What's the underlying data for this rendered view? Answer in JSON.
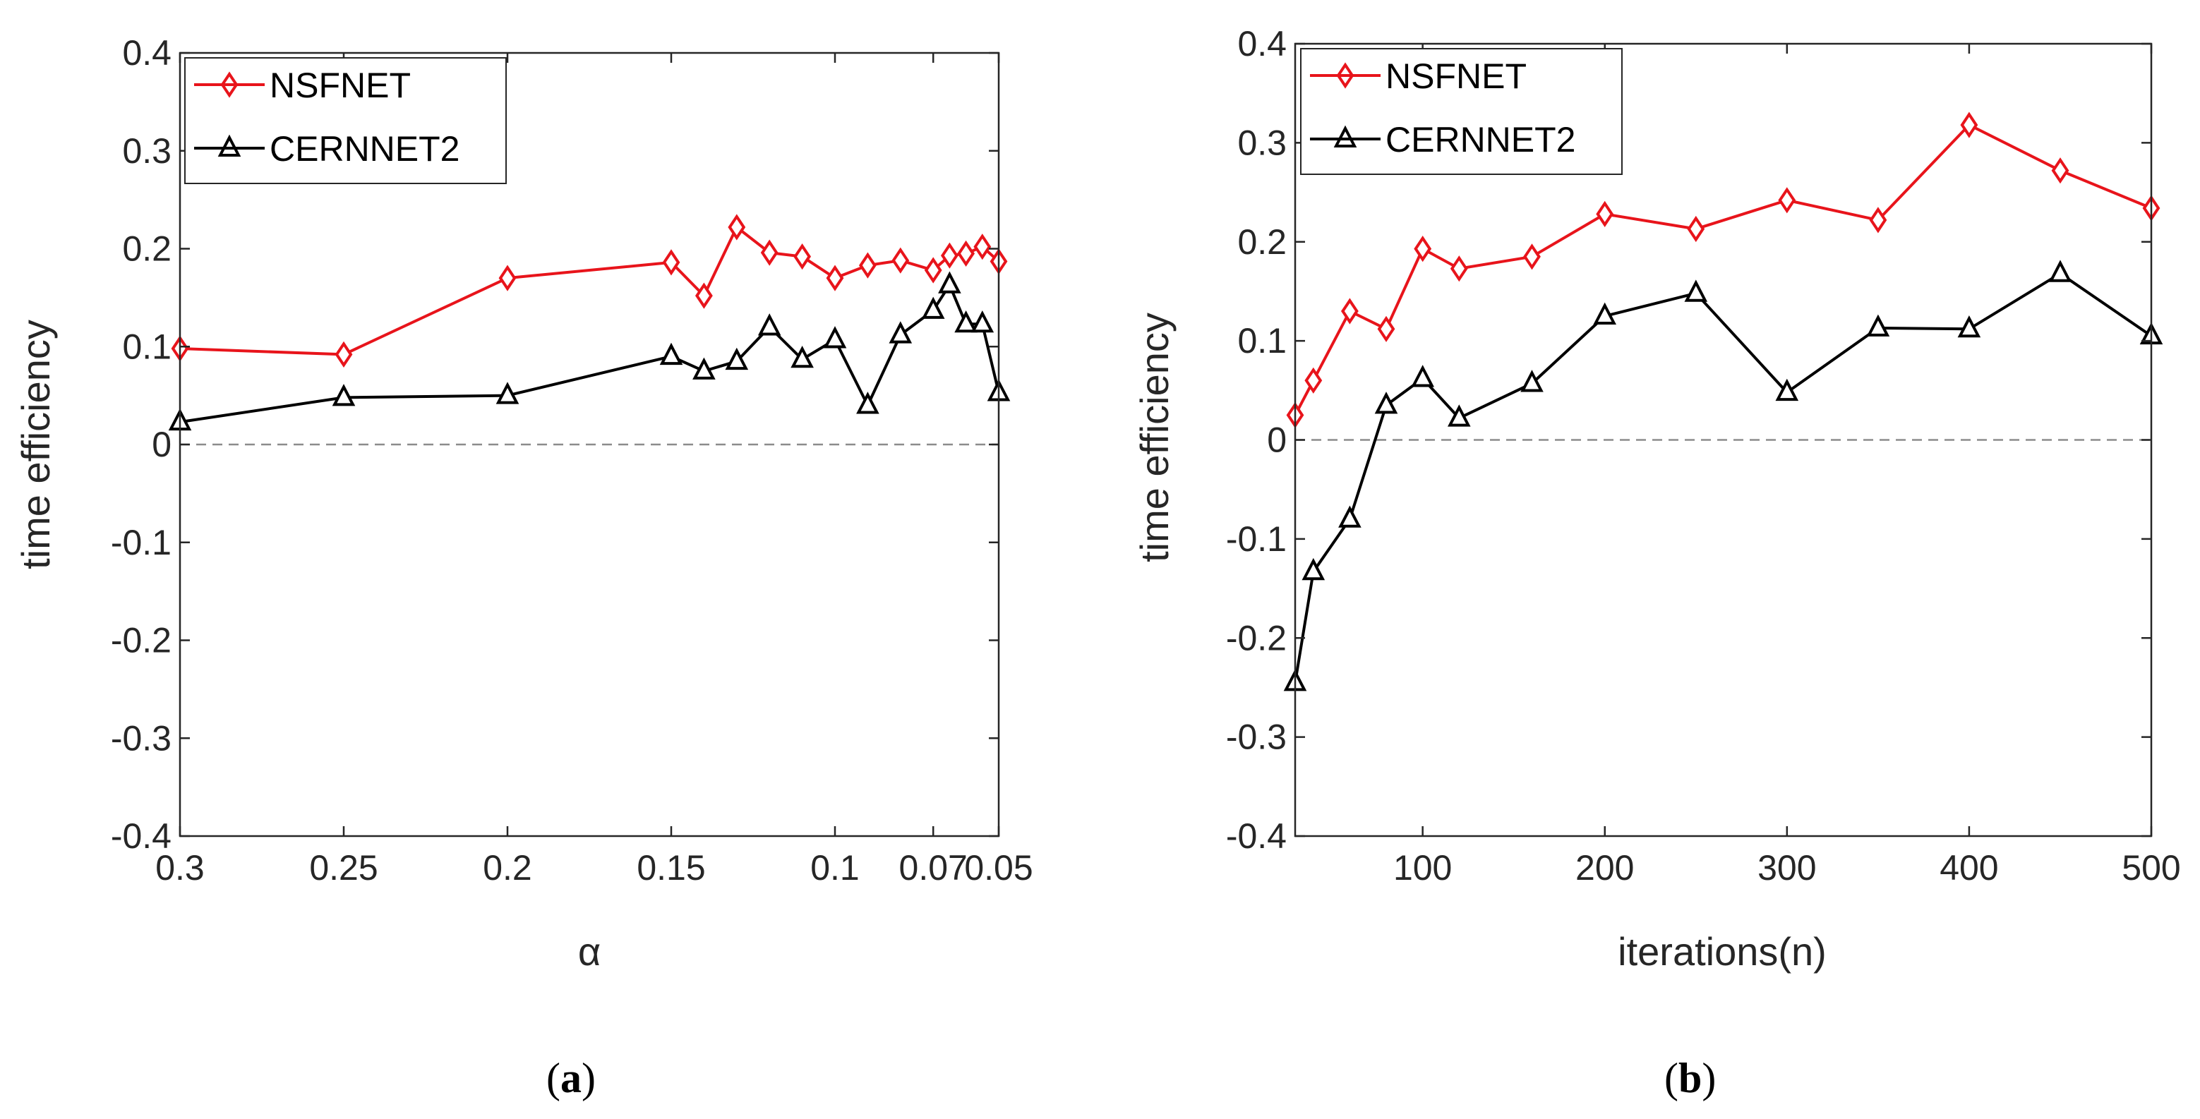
{
  "figure_captions": [
    {
      "open": "(",
      "letter": "a",
      "close": ")"
    },
    {
      "open": "(",
      "letter": "b",
      "close": ")"
    }
  ],
  "chart_data": [
    {
      "type": "line",
      "panel": "a",
      "xlabel": "α",
      "ylabel": "time efficiency",
      "x_reversed": true,
      "xlim": [
        0.05,
        0.3
      ],
      "ylim": [
        -0.4,
        0.4
      ],
      "xticks": [
        {
          "value": 0.3,
          "label": "0.3"
        },
        {
          "value": 0.25,
          "label": "0.25"
        },
        {
          "value": 0.2,
          "label": "0.2"
        },
        {
          "value": 0.15,
          "label": "0.15"
        },
        {
          "value": 0.1,
          "label": "0.1"
        },
        {
          "value": 0.07,
          "label": "0.07"
        },
        {
          "value": 0.05,
          "label": "0.05"
        }
      ],
      "yticks": [
        {
          "value": 0.4,
          "label": "0.4"
        },
        {
          "value": 0.3,
          "label": "0.3"
        },
        {
          "value": 0.2,
          "label": "0.2"
        },
        {
          "value": 0.1,
          "label": "0.1"
        },
        {
          "value": 0,
          "label": "0"
        },
        {
          "value": -0.1,
          "label": "-0.1"
        },
        {
          "value": -0.2,
          "label": "-0.2"
        },
        {
          "value": -0.3,
          "label": "-0.3"
        },
        {
          "value": -0.4,
          "label": "-0.4"
        }
      ],
      "reference_line": 0,
      "legend_position": "top-left",
      "series": [
        {
          "name": "NSFNET",
          "color": "#e8141b",
          "marker": "diamond",
          "x": [
            0.3,
            0.25,
            0.2,
            0.15,
            0.14,
            0.13,
            0.12,
            0.11,
            0.1,
            0.09,
            0.08,
            0.07,
            0.065,
            0.06,
            0.055,
            0.05
          ],
          "y": [
            0.098,
            0.092,
            0.17,
            0.186,
            0.152,
            0.222,
            0.196,
            0.192,
            0.17,
            0.183,
            0.188,
            0.178,
            0.193,
            0.195,
            0.202,
            0.187
          ]
        },
        {
          "name": "CERNNET2",
          "color": "#000000",
          "marker": "triangle",
          "x": [
            0.3,
            0.25,
            0.2,
            0.15,
            0.14,
            0.13,
            0.12,
            0.11,
            0.1,
            0.09,
            0.08,
            0.07,
            0.065,
            0.06,
            0.055,
            0.05
          ],
          "y": [
            0.023,
            0.048,
            0.05,
            0.09,
            0.075,
            0.085,
            0.12,
            0.087,
            0.107,
            0.04,
            0.112,
            0.137,
            0.163,
            0.123,
            0.123,
            0.053
          ]
        }
      ]
    },
    {
      "type": "line",
      "panel": "b",
      "xlabel": "iterations(n)",
      "ylabel": "time efficiency",
      "x_reversed": false,
      "xlim": [
        30,
        500
      ],
      "ylim": [
        -0.4,
        0.4
      ],
      "xticks": [
        {
          "value": 100,
          "label": "100"
        },
        {
          "value": 200,
          "label": "200"
        },
        {
          "value": 300,
          "label": "300"
        },
        {
          "value": 400,
          "label": "400"
        },
        {
          "value": 500,
          "label": "500"
        }
      ],
      "yticks": [
        {
          "value": 0.4,
          "label": "0.4"
        },
        {
          "value": 0.3,
          "label": "0.3"
        },
        {
          "value": 0.2,
          "label": "0.2"
        },
        {
          "value": 0.1,
          "label": "0.1"
        },
        {
          "value": 0,
          "label": "0"
        },
        {
          "value": -0.1,
          "label": "-0.1"
        },
        {
          "value": -0.2,
          "label": "-0.2"
        },
        {
          "value": -0.3,
          "label": "-0.3"
        },
        {
          "value": -0.4,
          "label": "-0.4"
        }
      ],
      "reference_line": 0,
      "legend_position": "top-left",
      "series": [
        {
          "name": "NSFNET",
          "color": "#e8141b",
          "marker": "diamond",
          "x": [
            30,
            40,
            60,
            80,
            100,
            120,
            160,
            200,
            250,
            300,
            350,
            400,
            450,
            500
          ],
          "y": [
            0.025,
            0.06,
            0.13,
            0.112,
            0.193,
            0.173,
            0.185,
            0.228,
            0.213,
            0.242,
            0.222,
            0.318,
            0.272,
            0.234
          ]
        },
        {
          "name": "CERNNET2",
          "color": "#000000",
          "marker": "triangle",
          "x": [
            30,
            40,
            60,
            80,
            100,
            120,
            160,
            200,
            250,
            300,
            350,
            400,
            450,
            500
          ],
          "y": [
            -0.245,
            -0.133,
            -0.08,
            0.035,
            0.062,
            0.022,
            0.057,
            0.125,
            0.148,
            0.048,
            0.113,
            0.112,
            0.168,
            0.105
          ]
        }
      ]
    }
  ]
}
